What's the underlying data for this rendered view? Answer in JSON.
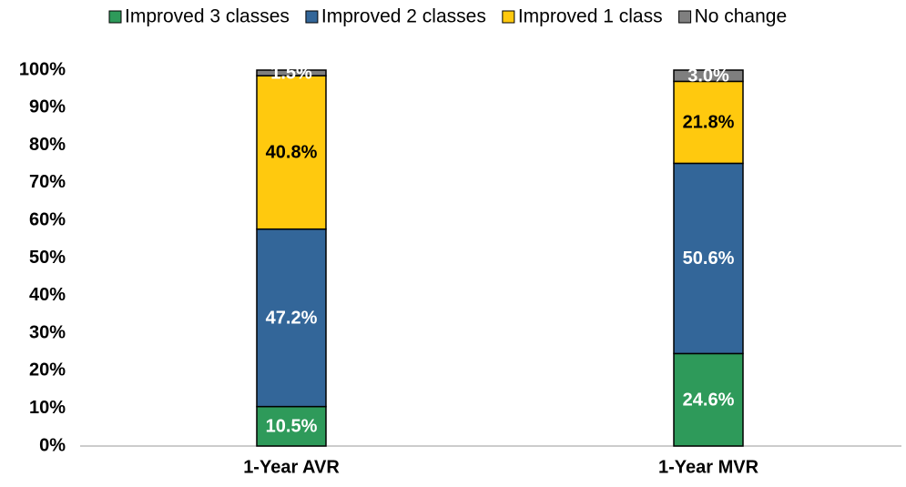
{
  "chart_data": {
    "type": "stacked-bar",
    "categories": [
      "1-Year AVR",
      "1-Year MVR"
    ],
    "series": [
      {
        "name": "Improved 3 classes",
        "color": "#2e9a5a",
        "label_color": "#ffffff",
        "values": [
          10.5,
          24.6
        ],
        "value_labels": [
          "10.5%",
          "24.6%"
        ]
      },
      {
        "name": "Improved 2 classes",
        "color": "#336699",
        "label_color": "#ffffff",
        "values": [
          47.2,
          50.6
        ],
        "value_labels": [
          "47.2%",
          "50.6%"
        ]
      },
      {
        "name": "Improved 1 class",
        "color": "#ffc90e",
        "label_color": "#000000",
        "values": [
          40.8,
          21.8
        ],
        "value_labels": [
          "40.8%",
          "21.8%"
        ]
      },
      {
        "name": "No change",
        "color": "#7f7f7f",
        "label_color": "#ffffff",
        "values": [
          1.5,
          3.0
        ],
        "value_labels": [
          "1.5%",
          "3.0%"
        ]
      }
    ],
    "ylim": [
      0,
      100
    ],
    "yticks": [
      {
        "value": 0,
        "label": "0%"
      },
      {
        "value": 10,
        "label": "10%"
      },
      {
        "value": 20,
        "label": "20%"
      },
      {
        "value": 30,
        "label": "30%"
      },
      {
        "value": 40,
        "label": "40%"
      },
      {
        "value": 50,
        "label": "50%"
      },
      {
        "value": 60,
        "label": "60%"
      },
      {
        "value": 70,
        "label": "70%"
      },
      {
        "value": 80,
        "label": "80%"
      },
      {
        "value": 90,
        "label": "90%"
      },
      {
        "value": 100,
        "label": "100%"
      }
    ],
    "grid": false,
    "legend": "top"
  }
}
